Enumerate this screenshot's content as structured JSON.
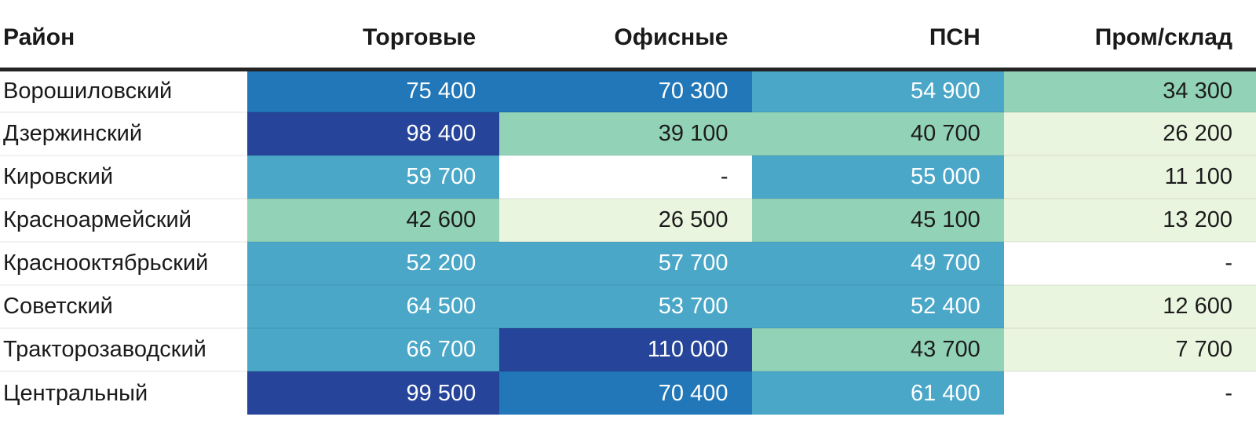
{
  "table": {
    "columns": [
      {
        "key": "district",
        "label": "Район"
      },
      {
        "key": "retail",
        "label": "Торговые"
      },
      {
        "key": "office",
        "label": "Офисные"
      },
      {
        "key": "psn",
        "label": "ПСН"
      },
      {
        "key": "industrial",
        "label": "Пром/склад"
      }
    ],
    "missing_marker": "-",
    "rows": [
      {
        "district": "Ворошиловский",
        "cells": [
          {
            "text": "75 400",
            "level": "l4"
          },
          {
            "text": "70 300",
            "level": "l4"
          },
          {
            "text": "54 900",
            "level": "l3"
          },
          {
            "text": "34 300",
            "level": "l2"
          }
        ]
      },
      {
        "district": "Дзержинский",
        "cells": [
          {
            "text": "98 400",
            "level": "l5"
          },
          {
            "text": "39 100",
            "level": "l2"
          },
          {
            "text": "40 700",
            "level": "l2"
          },
          {
            "text": "26 200",
            "level": "l1"
          }
        ]
      },
      {
        "district": "Кировский",
        "cells": [
          {
            "text": "59 700",
            "level": "l3"
          },
          {
            "text": "-",
            "level": "none"
          },
          {
            "text": "55 000",
            "level": "l3"
          },
          {
            "text": "11 100",
            "level": "l1"
          }
        ]
      },
      {
        "district": "Красноармейский",
        "cells": [
          {
            "text": "42 600",
            "level": "l2"
          },
          {
            "text": "26 500",
            "level": "l1"
          },
          {
            "text": "45 100",
            "level": "l2"
          },
          {
            "text": "13 200",
            "level": "l1"
          }
        ]
      },
      {
        "district": "Краснооктябрьский",
        "cells": [
          {
            "text": "52 200",
            "level": "l3"
          },
          {
            "text": "57 700",
            "level": "l3"
          },
          {
            "text": "49 700",
            "level": "l3"
          },
          {
            "text": "-",
            "level": "none"
          }
        ]
      },
      {
        "district": "Советский",
        "cells": [
          {
            "text": "64 500",
            "level": "l3"
          },
          {
            "text": "53 700",
            "level": "l3"
          },
          {
            "text": "52 400",
            "level": "l3"
          },
          {
            "text": "12 600",
            "level": "l1"
          }
        ]
      },
      {
        "district": "Тракторозаводский",
        "cells": [
          {
            "text": "66 700",
            "level": "l3"
          },
          {
            "text": "110 000",
            "level": "l5"
          },
          {
            "text": "43 700",
            "level": "l2"
          },
          {
            "text": "7 700",
            "level": "l1"
          }
        ]
      },
      {
        "district": "Центральный",
        "cells": [
          {
            "text": "99 500",
            "level": "l5"
          },
          {
            "text": "70 400",
            "level": "l4"
          },
          {
            "text": "61 400",
            "level": "l3"
          },
          {
            "text": "-",
            "level": "none"
          }
        ]
      }
    ]
  },
  "palette": {
    "none": {
      "bg": "#ffffff",
      "fg": "#1c1c1c"
    },
    "l1": {
      "bg": "#eaf5df",
      "fg": "#1c1c1c"
    },
    "l2": {
      "bg": "#92d3b8",
      "fg": "#1c1c1c"
    },
    "l3": {
      "bg": "#4aa7c8",
      "fg": "#ffffff"
    },
    "l4": {
      "bg": "#2177b8",
      "fg": "#ffffff"
    },
    "l5": {
      "bg": "#26459a",
      "fg": "#ffffff"
    }
  },
  "chart_data": {
    "type": "table",
    "title": "",
    "categories": [
      "Ворошиловский",
      "Дзержинский",
      "Кировский",
      "Красноармейский",
      "Краснооктябрьский",
      "Советский",
      "Тракторозаводский",
      "Центральный"
    ],
    "series": [
      {
        "name": "Торговые",
        "values": [
          75400,
          98400,
          59700,
          42600,
          52200,
          64500,
          66700,
          99500
        ]
      },
      {
        "name": "Офисные",
        "values": [
          70300,
          39100,
          null,
          26500,
          57700,
          53700,
          110000,
          70400
        ]
      },
      {
        "name": "ПСН",
        "values": [
          54900,
          40700,
          55000,
          45100,
          49700,
          52400,
          43700,
          61400
        ]
      },
      {
        "name": "Пром/склад",
        "values": [
          34300,
          26200,
          11100,
          13200,
          null,
          12600,
          7700,
          null
        ]
      }
    ],
    "missing_marker": "-",
    "heatmap": true,
    "heatmap_scale": [
      "#eaf5df",
      "#92d3b8",
      "#4aa7c8",
      "#2177b8",
      "#26459a"
    ]
  }
}
